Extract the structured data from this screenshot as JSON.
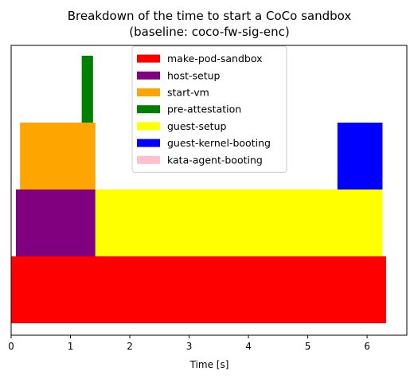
{
  "chart_data": {
    "type": "bar",
    "orientation": "horizontal-stacked-gantt",
    "title": "Breakdown of the time to start a CoCo sandbox",
    "subtitle": "(baseline: coco-fw-sig-enc)",
    "xlabel": "Time [s]",
    "ylabel": "",
    "xlim": [
      0,
      6.67
    ],
    "x_ticks": [
      0,
      1,
      2,
      3,
      4,
      5,
      6
    ],
    "legend_position": "upper-center",
    "grid": false,
    "series": [
      {
        "name": "make-pod-sandbox",
        "color": "#ff0000",
        "segments": [
          {
            "level": 0,
            "start": 0.0,
            "end": 6.32
          }
        ]
      },
      {
        "name": "host-setup",
        "color": "#800080",
        "segments": [
          {
            "level": 1,
            "start": 0.08,
            "end": 1.42
          }
        ]
      },
      {
        "name": "start-vm",
        "color": "#ffa500",
        "segments": [
          {
            "level": 2,
            "start": 0.15,
            "end": 1.42
          }
        ]
      },
      {
        "name": "pre-attestation",
        "color": "#008000",
        "segments": [
          {
            "level": 3,
            "start": 1.19,
            "end": 1.38
          }
        ]
      },
      {
        "name": "guest-setup",
        "color": "#ffff00",
        "segments": [
          {
            "level": 1,
            "start": 1.42,
            "end": 6.26
          }
        ]
      },
      {
        "name": "guest-kernel-booting",
        "color": "#0000ff",
        "segments": [
          {
            "level": 2,
            "start": 5.5,
            "end": 6.26
          }
        ]
      },
      {
        "name": "kata-agent-booting",
        "color": "#ffc0cb",
        "segments": []
      }
    ]
  }
}
